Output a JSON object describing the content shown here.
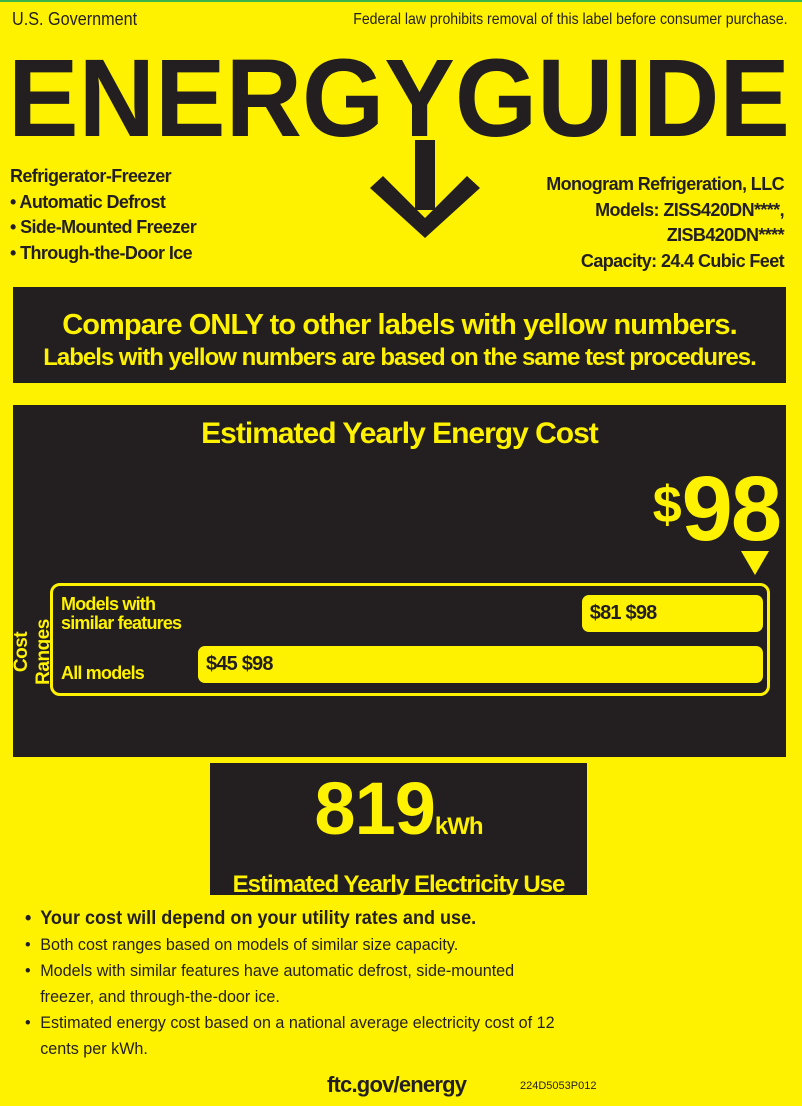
{
  "header": {
    "government": "U.S. Government",
    "law_notice": "Federal law prohibits removal of this label before consumer purchase.",
    "logo_text": "ENERGYGUIDE"
  },
  "product": {
    "type": "Refrigerator-Freezer",
    "features": [
      "• Automatic Defrost",
      "• Side-Mounted Freezer",
      "• Through-the-Door Ice"
    ],
    "manufacturer": "Monogram Refrigeration, LLC",
    "models_line1": "Models: ZISS420DN****,",
    "models_line2": "ZISB420DN****",
    "capacity": "Capacity: 24.4 Cubic Feet"
  },
  "compare": {
    "line1": "Compare ONLY to other labels with yellow numbers.",
    "line2": "Labels with yellow numbers are based on the same test procedures."
  },
  "cost": {
    "title": "Estimated Yearly Energy Cost",
    "currency": "$",
    "value": "98",
    "ranges_label": "Cost Ranges",
    "ranges": [
      {
        "label_line1": "Models with",
        "label_line2": "similar features",
        "min": 81,
        "max": 98,
        "text": "$81 $98"
      },
      {
        "label_line1": "",
        "label_line2": "All models",
        "min": 45,
        "max": 98,
        "text": "$45 $98"
      }
    ],
    "product_value": 98
  },
  "electricity": {
    "value": "819",
    "unit": "kWh",
    "label": "Estimated Yearly Electricity Use"
  },
  "notes": [
    "Your cost will depend on your utility rates and use.",
    "Both cost ranges based on models of similar size capacity.",
    "Models with similar features have automatic defrost, side-mounted freezer, and through-the-door ice.",
    "Estimated energy cost based on a national average electricity cost of 12 cents per kWh."
  ],
  "footer": {
    "website": "ftc.gov/energy",
    "code": "224D5053P012"
  },
  "colors": {
    "label_yellow": "#fff200",
    "dark": "#231f20"
  }
}
